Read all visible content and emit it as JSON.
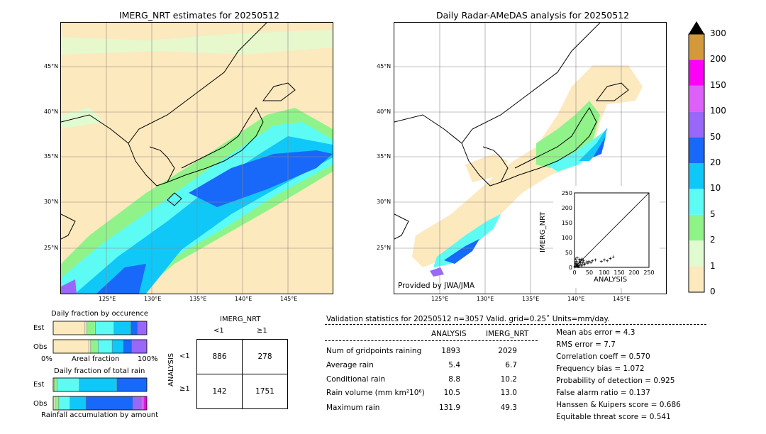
{
  "left_map": {
    "title": "IMERG_NRT estimates for 20250512",
    "lat_labels": [
      "45°N",
      "40°N",
      "35°N",
      "30°N",
      "25°N"
    ],
    "lon_labels": [
      "125°E",
      "130°E",
      "135°E",
      "140°E",
      "145°E"
    ]
  },
  "right_map": {
    "title": "Daily Radar-AMeDAS analysis for 20250512",
    "lat_labels": [
      "45°N",
      "40°N",
      "35°N",
      "30°N",
      "25°N"
    ],
    "lon_labels": [
      "125°E",
      "130°E",
      "135°E",
      "140°E",
      "145°E"
    ],
    "credit": "Provided by JWA/JMA"
  },
  "colorbar": {
    "levels": [
      "0",
      "1",
      "2",
      "5",
      "10",
      "20",
      "50",
      "100",
      "150",
      "200",
      "300"
    ],
    "colors": [
      "#fde9be",
      "#e0fbcf",
      "#90f38a",
      "#5cfcf5",
      "#10c8f8",
      "#1868fa",
      "#9a68f8",
      "#dd60f8",
      "#fc00f8",
      "#d29a3c"
    ]
  },
  "scatter": {
    "ylabel": "IMERG_NRT",
    "xlabel": "ANALYSIS",
    "ticks": [
      "0",
      "50",
      "100",
      "150",
      "200",
      "250"
    ],
    "points": [
      [
        2,
        3
      ],
      [
        5,
        8
      ],
      [
        8,
        4
      ],
      [
        10,
        12
      ],
      [
        12,
        6
      ],
      [
        15,
        18
      ],
      [
        18,
        9
      ],
      [
        20,
        15
      ],
      [
        22,
        25
      ],
      [
        25,
        10
      ],
      [
        6,
        20
      ],
      [
        3,
        14
      ],
      [
        14,
        2
      ],
      [
        28,
        16
      ],
      [
        30,
        22
      ],
      [
        35,
        12
      ],
      [
        40,
        18
      ],
      [
        45,
        14
      ],
      [
        48,
        20
      ],
      [
        55,
        16
      ],
      [
        60,
        22
      ],
      [
        70,
        25
      ],
      [
        90,
        20
      ],
      [
        100,
        25
      ],
      [
        110,
        22
      ],
      [
        120,
        30
      ],
      [
        130,
        35
      ],
      [
        4,
        28
      ],
      [
        9,
        32
      ],
      [
        16,
        27
      ],
      [
        1,
        1
      ],
      [
        7,
        7
      ],
      [
        11,
        3
      ],
      [
        19,
        21
      ],
      [
        24,
        5
      ],
      [
        26,
        28
      ],
      [
        33,
        8
      ]
    ]
  },
  "occurrence": {
    "title": "Daily fraction by occurence",
    "rows": [
      "Est",
      "Obs"
    ],
    "axis_left": "0%",
    "axis_mid": "Areal fraction",
    "axis_right": "100%",
    "est_fractions": [
      0.34,
      0.02,
      0.09,
      0.2,
      0.18,
      0.07,
      0.1
    ],
    "obs_fractions": [
      0.38,
      0.02,
      0.08,
      0.15,
      0.12,
      0.09,
      0.16
    ]
  },
  "total_rain": {
    "title": "Daily fraction of total rain",
    "rows": [
      "Est",
      "Obs"
    ],
    "caption": "Rainfall accumulation by amount",
    "est_fractions": [
      0.01,
      0.03,
      0.24,
      0.4,
      0.32
    ],
    "obs_fractions": [
      0.02,
      0.04,
      0.12,
      0.17,
      0.5,
      0.09,
      0.03,
      0.03
    ]
  },
  "contingency": {
    "title": "IMERG_NRT",
    "col_labels": [
      "<1",
      "≥1"
    ],
    "row_axis": "ANALYSIS",
    "row_labels": [
      "<1",
      "≥1"
    ],
    "cells": [
      [
        "886",
        "278"
      ],
      [
        "142",
        "1751"
      ]
    ]
  },
  "validation": {
    "header": "Validation statistics for 20250512  n=3057 Valid. grid=0.25˚ Units=mm/day.",
    "col_analysis": "ANALYSIS",
    "col_imerg": "IMERG_NRT",
    "rows": [
      {
        "label": "Num of gridpoints raining",
        "analysis": "1893",
        "imerg": "2029"
      },
      {
        "label": "Average rain",
        "analysis": "5.4",
        "imerg": "6.7"
      },
      {
        "label": "Conditional rain",
        "analysis": "8.8",
        "imerg": "10.2"
      },
      {
        "label": "Rain volume (mm km²10⁶)",
        "analysis": "10.5",
        "imerg": "13.0"
      },
      {
        "label": "Maximum rain",
        "analysis": "131.9",
        "imerg": "49.3"
      }
    ],
    "scores": [
      "Mean abs error =    4.3",
      "RMS error =    7.7",
      "Correlation coeff =  0.570",
      "Frequency bias =  1.072",
      "Probability of detection =  0.925",
      "False alarm ratio =  0.137",
      "Hanssen & Kuipers score =  0.686",
      "Equitable threat score =  0.541"
    ]
  },
  "chart_data": {
    "type": "table",
    "title": "Validation statistics for 20250512",
    "n": 3057,
    "columns": [
      "ANALYSIS",
      "IMERG_NRT"
    ],
    "rows": {
      "Num of gridpoints raining": [
        1893,
        2029
      ],
      "Average rain": [
        5.4,
        6.7
      ],
      "Conditional rain": [
        8.8,
        10.2
      ],
      "Rain volume (mm km2 10^6)": [
        10.5,
        13.0
      ],
      "Maximum rain": [
        131.9,
        49.3
      ]
    },
    "contingency": {
      "rows": [
        "<1",
        "≥1"
      ],
      "cols": [
        "<1",
        "≥1"
      ],
      "values": [
        [
          886,
          278
        ],
        [
          142,
          1751
        ]
      ]
    },
    "scores": {
      "Mean abs error": 4.3,
      "RMS error": 7.7,
      "Correlation coeff": 0.57,
      "Frequency bias": 1.072,
      "Probability of detection": 0.925,
      "False alarm ratio": 0.137,
      "Hanssen & Kuipers score": 0.686,
      "Equitable threat score": 0.541
    },
    "colorbar_levels": [
      0,
      1,
      2,
      5,
      10,
      20,
      50,
      100,
      150,
      200,
      300
    ]
  }
}
